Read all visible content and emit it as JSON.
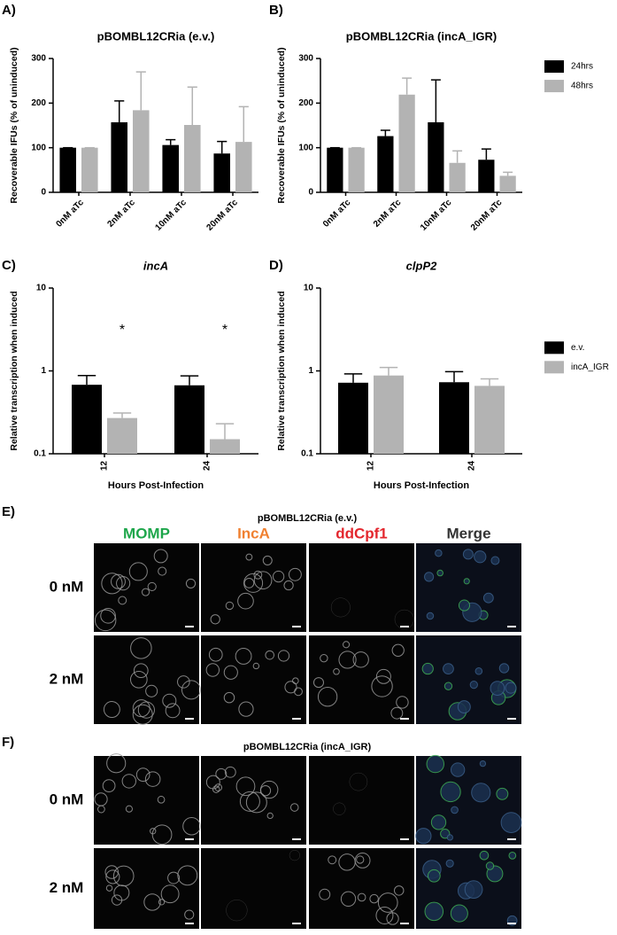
{
  "chart_data": [
    {
      "type": "bar",
      "panel": "A)",
      "title": "pBOMBL12CRia (e.v.)",
      "ylabel": "Recoverable IFUs (% of uninduced)",
      "categories": [
        "0nM aTc",
        "2nM aTc",
        "10nM aTc",
        "20nM aTc"
      ],
      "series": [
        {
          "color": "#000000",
          "values": [
            100,
            157,
            106,
            87
          ],
          "error": [
            0,
            48,
            12,
            27
          ]
        },
        {
          "color": "#b3b3b3",
          "values": [
            100,
            184,
            151,
            113
          ],
          "error": [
            0,
            86,
            85,
            79
          ]
        }
      ],
      "ylim": [
        0,
        300
      ],
      "yticks": [
        0,
        100,
        200,
        300
      ]
    },
    {
      "type": "bar",
      "panel": "B)",
      "title": "pBOMBL12CRia (incA_IGR)",
      "ylabel": "Recoverable IFUs (% of uninduced)",
      "categories": [
        "0nM aTc",
        "2nM aTc",
        "10nM aTc",
        "20nM aTc"
      ],
      "series": [
        {
          "name": "24hrs",
          "color": "#000000",
          "values": [
            100,
            126,
            157,
            73
          ],
          "error": [
            0,
            13,
            95,
            24
          ]
        },
        {
          "name": "48hrs",
          "color": "#b3b3b3",
          "values": [
            100,
            219,
            66,
            37
          ],
          "error": [
            0,
            37,
            27,
            8
          ]
        }
      ],
      "ylim": [
        0,
        300
      ],
      "yticks": [
        0,
        100,
        200,
        300
      ],
      "legend": "right"
    },
    {
      "type": "bar",
      "panel": "C)",
      "title": "incA",
      "ylabel": "Relative transcription when induced",
      "xlabel": "Hours Post-Infection",
      "categories": [
        "12",
        "24"
      ],
      "annotations": [
        "*",
        "*"
      ],
      "log_scale": true,
      "series": [
        {
          "color": "#000000",
          "values": [
            0.68,
            0.67
          ],
          "error": [
            0.2,
            0.2
          ]
        },
        {
          "color": "#b3b3b3",
          "values": [
            0.27,
            0.15
          ],
          "error": [
            0.04,
            0.08
          ]
        }
      ],
      "ylim": [
        0.1,
        10
      ],
      "yticks": [
        0.1,
        1,
        10
      ]
    },
    {
      "type": "bar",
      "panel": "D)",
      "title": "clpP2",
      "ylabel": "Relative transcription when induced",
      "xlabel": "Hours Post-Infection",
      "categories": [
        "12",
        "24"
      ],
      "log_scale": true,
      "series": [
        {
          "name": "e.v.",
          "color": "#000000",
          "values": [
            0.72,
            0.73
          ],
          "error": [
            0.2,
            0.25
          ]
        },
        {
          "name": "incA_IGR",
          "color": "#b3b3b3",
          "values": [
            0.88,
            0.66
          ],
          "error": [
            0.22,
            0.14
          ]
        }
      ],
      "ylim": [
        0.1,
        10
      ],
      "yticks": [
        0.1,
        1,
        10
      ],
      "legend": "right"
    }
  ],
  "microscopy": [
    {
      "panel": "E)",
      "title": "pBOMBL12CRia (e.v.)",
      "columns": [
        {
          "label": "MOMP",
          "color": "#1ea64b"
        },
        {
          "label": "IncA",
          "color": "#f08030"
        },
        {
          "label": "ddCpf1",
          "color": "#e3262d"
        },
        {
          "label": "Merge",
          "color": "#333333"
        }
      ],
      "rows": [
        "0 nM",
        "2 nM"
      ]
    },
    {
      "panel": "F)",
      "title": "pBOMBL12CRia (incA_IGR)",
      "rows": [
        "0 nM",
        "2 nM"
      ]
    }
  ]
}
